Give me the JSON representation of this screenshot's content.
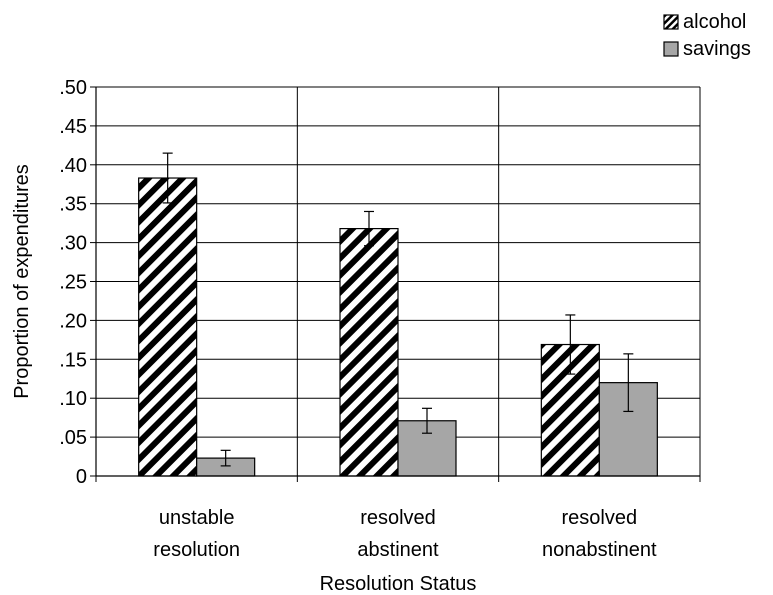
{
  "chart_data": {
    "type": "bar",
    "title": "",
    "xlabel": "Resolution Status",
    "ylabel": "Proportion of expenditures",
    "ylim": [
      0,
      0.5
    ],
    "yticks": [
      0,
      0.05,
      0.1,
      0.15,
      0.2,
      0.25,
      0.3,
      0.35,
      0.4,
      0.45,
      0.5
    ],
    "ytick_labels": [
      "0",
      ".05",
      ".10",
      ".15",
      ".20",
      ".25",
      ".30",
      ".35",
      ".40",
      ".45",
      ".50"
    ],
    "categories": [
      [
        "unstable",
        "resolution"
      ],
      [
        "resolved",
        "abstinent"
      ],
      [
        "resolved",
        "nonabstinent"
      ]
    ],
    "series": [
      {
        "name": "alcohol",
        "pattern": "diagonal-hatch",
        "color": "#000000",
        "values": [
          0.383,
          0.318,
          0.169
        ],
        "error": [
          0.032,
          0.022,
          0.038
        ]
      },
      {
        "name": "savings",
        "pattern": "solid",
        "color": "#a6a6a6",
        "values": [
          0.023,
          0.071,
          0.12
        ],
        "error": [
          0.01,
          0.016,
          0.037
        ]
      }
    ],
    "grid": "horizontal",
    "category_dividers": true,
    "legend_position": "top-right"
  }
}
